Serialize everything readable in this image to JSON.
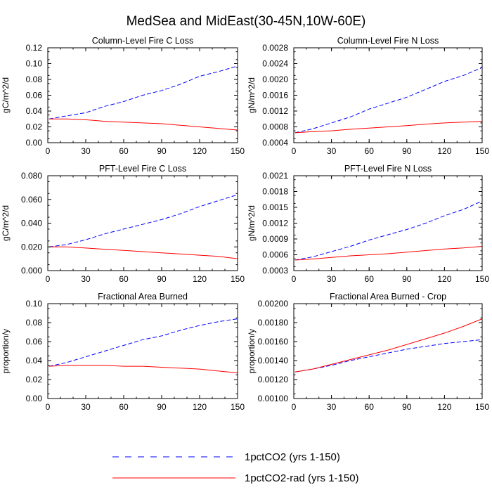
{
  "figure_title": "MedSea and MidEast(30-45N,10W-60E)",
  "legend": [
    {
      "label": "1pctCO2 (yrs 1-150)",
      "color": "#0000ff",
      "dash": true
    },
    {
      "label": "1pctCO2-rad (yrs 1-150)",
      "color": "#ff0000",
      "dash": false
    }
  ],
  "chart_data": [
    {
      "type": "line",
      "title": "Column-Level Fire C Loss",
      "ylabel": "gC/m^2/d",
      "xlim": [
        0,
        150
      ],
      "ylim": [
        0,
        0.12
      ],
      "xticks": [
        "0",
        "30",
        "60",
        "90",
        "120",
        "150"
      ],
      "yticks": [
        "0.00",
        "0.02",
        "0.04",
        "0.06",
        "0.08",
        "0.10",
        "0.12"
      ],
      "series": [
        {
          "color": "#0000ff",
          "dash": true,
          "x": [
            1,
            15,
            30,
            45,
            60,
            75,
            90,
            105,
            120,
            135,
            150
          ],
          "y": [
            0.03,
            0.034,
            0.038,
            0.046,
            0.052,
            0.06,
            0.066,
            0.074,
            0.084,
            0.09,
            0.097
          ]
        },
        {
          "color": "#ff0000",
          "dash": false,
          "x": [
            1,
            15,
            30,
            45,
            60,
            75,
            90,
            105,
            120,
            135,
            150
          ],
          "y": [
            0.03,
            0.03,
            0.029,
            0.027,
            0.026,
            0.025,
            0.024,
            0.022,
            0.02,
            0.018,
            0.016
          ]
        }
      ]
    },
    {
      "type": "line",
      "title": "Column-Level Fire N Loss",
      "ylabel": "gN/m^2/d",
      "xlim": [
        0,
        150
      ],
      "ylim": [
        0.0004,
        0.0028
      ],
      "xticks": [
        "0",
        "30",
        "60",
        "90",
        "120",
        "150"
      ],
      "yticks": [
        "0.0004",
        "0.0008",
        "0.0012",
        "0.0016",
        "0.0020",
        "0.0024",
        "0.0028"
      ],
      "series": [
        {
          "color": "#0000ff",
          "dash": true,
          "x": [
            1,
            15,
            30,
            45,
            60,
            75,
            90,
            105,
            120,
            135,
            150
          ],
          "y": [
            0.00065,
            0.00075,
            0.0009,
            0.00105,
            0.00125,
            0.0014,
            0.00155,
            0.00175,
            0.00195,
            0.0021,
            0.0023
          ]
        },
        {
          "color": "#ff0000",
          "dash": false,
          "x": [
            1,
            15,
            30,
            45,
            60,
            75,
            90,
            105,
            120,
            135,
            150
          ],
          "y": [
            0.00065,
            0.00068,
            0.0007,
            0.00074,
            0.00077,
            0.0008,
            0.00083,
            0.00087,
            0.0009,
            0.00092,
            0.00094
          ]
        }
      ]
    },
    {
      "type": "line",
      "title": "PFT-Level Fire C Loss",
      "ylabel": "gC/m^2/d",
      "xlim": [
        0,
        150
      ],
      "ylim": [
        0,
        0.08
      ],
      "xticks": [
        "0",
        "30",
        "60",
        "90",
        "120",
        "150"
      ],
      "yticks": [
        "0.000",
        "0.020",
        "0.040",
        "0.060",
        "0.080"
      ],
      "series": [
        {
          "color": "#0000ff",
          "dash": true,
          "x": [
            1,
            15,
            30,
            45,
            60,
            75,
            90,
            105,
            120,
            135,
            150
          ],
          "y": [
            0.02,
            0.022,
            0.026,
            0.031,
            0.035,
            0.039,
            0.043,
            0.048,
            0.054,
            0.059,
            0.064
          ]
        },
        {
          "color": "#ff0000",
          "dash": false,
          "x": [
            1,
            15,
            30,
            45,
            60,
            75,
            90,
            105,
            120,
            135,
            150
          ],
          "y": [
            0.02,
            0.02,
            0.019,
            0.018,
            0.017,
            0.016,
            0.015,
            0.014,
            0.013,
            0.012,
            0.01
          ]
        }
      ]
    },
    {
      "type": "line",
      "title": "PFT-Level Fire N Loss",
      "ylabel": "gN/m^2/d",
      "xlim": [
        0,
        150
      ],
      "ylim": [
        0.0003,
        0.0021
      ],
      "xticks": [
        "0",
        "30",
        "60",
        "90",
        "120",
        "150"
      ],
      "yticks": [
        "0.0003",
        "0.0006",
        "0.0009",
        "0.0012",
        "0.0015",
        "0.0018",
        "0.0021"
      ],
      "series": [
        {
          "color": "#0000ff",
          "dash": true,
          "x": [
            1,
            15,
            30,
            45,
            60,
            75,
            90,
            105,
            120,
            135,
            150
          ],
          "y": [
            0.0005,
            0.00056,
            0.00066,
            0.00076,
            0.00088,
            0.00098,
            0.00108,
            0.0012,
            0.00134,
            0.00146,
            0.00162
          ]
        },
        {
          "color": "#ff0000",
          "dash": false,
          "x": [
            1,
            15,
            30,
            45,
            60,
            75,
            90,
            105,
            120,
            135,
            150
          ],
          "y": [
            0.0005,
            0.00052,
            0.00055,
            0.00058,
            0.0006,
            0.00062,
            0.00065,
            0.00068,
            0.00071,
            0.00073,
            0.00076
          ]
        }
      ]
    },
    {
      "type": "line",
      "title": "Fractional Area Burned",
      "ylabel": "proportion/y",
      "xlim": [
        0,
        150
      ],
      "ylim": [
        0,
        0.1
      ],
      "xticks": [
        "0",
        "30",
        "60",
        "90",
        "120",
        "150"
      ],
      "yticks": [
        "0.00",
        "0.02",
        "0.04",
        "0.06",
        "0.08",
        "0.10"
      ],
      "series": [
        {
          "color": "#0000ff",
          "dash": true,
          "x": [
            1,
            15,
            30,
            45,
            60,
            75,
            90,
            105,
            120,
            135,
            150
          ],
          "y": [
            0.034,
            0.038,
            0.044,
            0.05,
            0.056,
            0.062,
            0.066,
            0.072,
            0.077,
            0.081,
            0.084
          ]
        },
        {
          "color": "#ff0000",
          "dash": false,
          "x": [
            1,
            15,
            30,
            45,
            60,
            75,
            90,
            105,
            120,
            135,
            150
          ],
          "y": [
            0.034,
            0.035,
            0.035,
            0.035,
            0.034,
            0.034,
            0.033,
            0.032,
            0.031,
            0.029,
            0.027
          ]
        }
      ]
    },
    {
      "type": "line",
      "title": "Fractional Area Burned - Crop",
      "ylabel": "proportion/y",
      "xlim": [
        0,
        150
      ],
      "ylim": [
        0.001,
        0.002
      ],
      "xticks": [
        "0",
        "30",
        "60",
        "90",
        "120",
        "150"
      ],
      "yticks": [
        "0.00100",
        "0.00120",
        "0.00140",
        "0.00160",
        "0.00180",
        "0.00200"
      ],
      "series": [
        {
          "color": "#0000ff",
          "dash": true,
          "x": [
            1,
            15,
            30,
            45,
            60,
            75,
            90,
            105,
            120,
            135,
            150
          ],
          "y": [
            0.00128,
            0.00131,
            0.00135,
            0.0014,
            0.00144,
            0.00148,
            0.00152,
            0.00155,
            0.00158,
            0.0016,
            0.00162
          ]
        },
        {
          "color": "#ff0000",
          "dash": false,
          "x": [
            1,
            15,
            30,
            45,
            60,
            75,
            90,
            105,
            120,
            135,
            150
          ],
          "y": [
            0.00128,
            0.00131,
            0.00136,
            0.00141,
            0.00146,
            0.00151,
            0.00157,
            0.00163,
            0.00169,
            0.00176,
            0.00184
          ]
        }
      ]
    }
  ]
}
